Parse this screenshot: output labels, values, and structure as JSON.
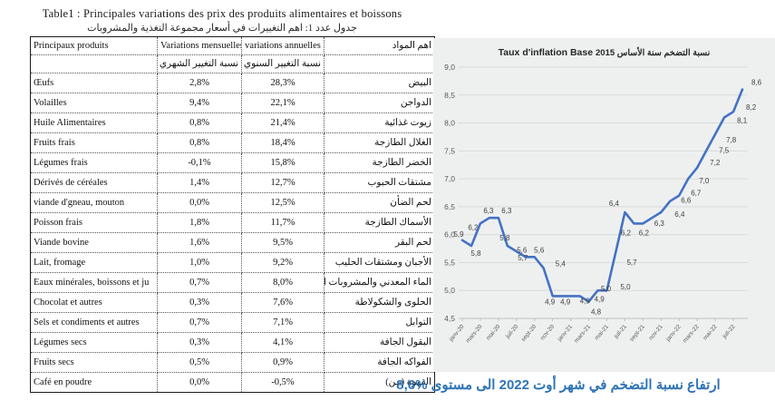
{
  "table": {
    "title_fr": "Table1 : Principales variations des prix des produits alimentaires et boissons",
    "title_ar": "جدول عدد 1: اهم التغييرات في أسعار مجموعة التغذية والمشروبات",
    "headers": {
      "col1": "Principaux produits",
      "col2": "Variations mensuelles",
      "col3": "variations annuelles",
      "col4": "اهم المواد",
      "col2_sub": "نسبة التغيير الشهري",
      "col3_sub": "نسبة التغيير السنوي"
    },
    "rows": [
      {
        "fr": "Œufs",
        "monthly": "2,8%",
        "annual": "28,3%",
        "ar": "البيض"
      },
      {
        "fr": "Volailles",
        "monthly": "9,4%",
        "annual": "22,1%",
        "ar": "الدواجن"
      },
      {
        "fr": "Huile Alimentaires",
        "monthly": "0,8%",
        "annual": "21,4%",
        "ar": "زيوت غذائية"
      },
      {
        "fr": "Fruits frais",
        "monthly": "0,8%",
        "annual": "18,4%",
        "ar": "الغلال الطازجة"
      },
      {
        "fr": "Légumes frais",
        "monthly": "-0,1%",
        "annual": "15,8%",
        "ar": "الخضر الطازجة"
      },
      {
        "fr": "Dérivés de céréales",
        "monthly": "1,4%",
        "annual": "12,7%",
        "ar": "مشتقات الحبوب"
      },
      {
        "fr": "viande d'gneau, mouton",
        "monthly": "0,0%",
        "annual": "12,5%",
        "ar": "لحم الضأن"
      },
      {
        "fr": "Poisson frais",
        "monthly": "1,8%",
        "annual": "11,7%",
        "ar": "الأسماك الطازجة"
      },
      {
        "fr": "Viande bovine",
        "monthly": "1,6%",
        "annual": "9,5%",
        "ar": "لحم البقر"
      },
      {
        "fr": "Lait, fromage",
        "monthly": "1,0%",
        "annual": "9,2%",
        "ar": "الأجبان ومشتقات الحليب"
      },
      {
        "fr": "Eaux minérales, boissons et ju",
        "monthly": "0,7%",
        "annual": "8,0%",
        "ar": "الماء المعدني والمشروبات الغازية"
      },
      {
        "fr": "Chocolat et autres",
        "monthly": "0,3%",
        "annual": "7,6%",
        "ar": "الحلوى والشكولاطة"
      },
      {
        "fr": "Sels et condiments et autres",
        "monthly": "0,7%",
        "annual": "7,1%",
        "ar": "التوابل"
      },
      {
        "fr": "Légumes secs",
        "monthly": "0,3%",
        "annual": "4,1%",
        "ar": "البقول الجافة"
      },
      {
        "fr": "Fruits secs",
        "monthly": "0,5%",
        "annual": "0,9%",
        "ar": "الفواكه الجافة"
      },
      {
        "fr": "Café en poudre",
        "monthly": "0,0%",
        "annual": "-0,5%",
        "ar": "القهوة (بـن)"
      }
    ]
  },
  "chart_data": {
    "type": "line",
    "title_fr": "Taux d'inflation Base",
    "title_ar": "نسبة التضخم سنة الأساس 2015",
    "x": [
      "janv-20",
      "févr-20",
      "mars-20",
      "avr-20",
      "mai-20",
      "juin-20",
      "juil-20",
      "août-20",
      "sept-20",
      "oct-20",
      "nov-20",
      "déc-20",
      "janv-21",
      "févr-21",
      "mars-21",
      "avr-21",
      "mai-21",
      "juin-21",
      "juil-21",
      "août-21",
      "sept-21",
      "oct-21",
      "nov-21",
      "déc-21",
      "janv-22",
      "févr-22",
      "mars-22",
      "avr-22",
      "mai-22",
      "juin-22",
      "juil-22",
      "août-22"
    ],
    "x_tick_labels": [
      "janv-20",
      "mars-20",
      "mai-20",
      "juil-20",
      "sept-20",
      "nov-20",
      "janv-21",
      "mars-21",
      "mai-21",
      "juil-21",
      "sept-21",
      "nov-21",
      "janv-22",
      "mars-22",
      "mai-22",
      "juil-22"
    ],
    "values": [
      5.9,
      5.8,
      6.2,
      6.3,
      6.3,
      5.8,
      5.7,
      5.6,
      5.6,
      5.4,
      4.9,
      4.9,
      4.9,
      4.9,
      4.8,
      5.0,
      5.0,
      5.7,
      6.4,
      6.2,
      6.2,
      6.3,
      6.4,
      6.6,
      6.7,
      7.0,
      7.2,
      7.5,
      7.8,
      8.1,
      8.2,
      8.6
    ],
    "ylim": [
      4.5,
      9.0
    ],
    "ytick_step": 0.5,
    "grid": true,
    "legend": "none",
    "line_color": "#4472C4",
    "grid_color": "#d9d9d9",
    "label_color": "#3f3f3f",
    "axis_text_color": "#595959",
    "panel_bg": "#eef0f0"
  },
  "caption": "ارتفاع نسبة التضخم في شهر أوت 2022 الى مستوى %8,6"
}
